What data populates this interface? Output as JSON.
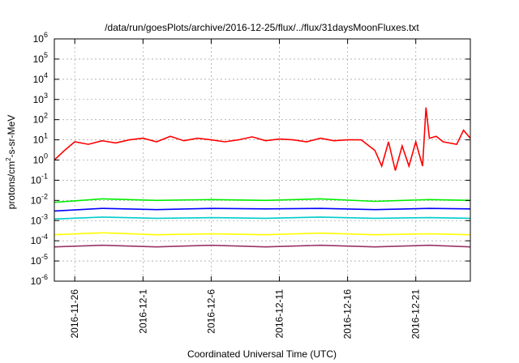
{
  "chart_data": {
    "type": "line",
    "title": "/data/run/goesPlots/archive/2016-12-25/flux/../flux/31daysMoonFluxes.txt",
    "xlabel": "Coordinated Universal Time (UTC)",
    "ylabel": "protons/cm2-s-sr-MeV",
    "ylabel_parts": {
      "before": "protons/cm",
      "sup": "2",
      "after": "-s-sr-MeV"
    },
    "yscale": "log",
    "ylim": [
      1e-06,
      1000000.0
    ],
    "xlim": [
      "2016-11-24T12:00",
      "2016-12-25T00:00"
    ],
    "grid": true,
    "y_ticks": [
      {
        "base": "10",
        "exp": "-6",
        "value": 1e-06
      },
      {
        "base": "10",
        "exp": "-5",
        "value": 1e-05
      },
      {
        "base": "10",
        "exp": "-4",
        "value": 0.0001
      },
      {
        "base": "10",
        "exp": "-3",
        "value": 0.001
      },
      {
        "base": "10",
        "exp": "-2",
        "value": 0.01
      },
      {
        "base": "10",
        "exp": "-1",
        "value": 0.1
      },
      {
        "base": "10",
        "exp": "0",
        "value": 1.0
      },
      {
        "base": "10",
        "exp": "1",
        "value": 10.0
      },
      {
        "base": "10",
        "exp": "2",
        "value": 100.0
      },
      {
        "base": "10",
        "exp": "3",
        "value": 1000.0
      },
      {
        "base": "10",
        "exp": "4",
        "value": 10000.0
      },
      {
        "base": "10",
        "exp": "5",
        "value": 100000.0
      },
      {
        "base": "10",
        "exp": "6",
        "value": 1000000.0
      }
    ],
    "x_ticks": [
      {
        "label": "2016-11-26",
        "date": "2016-11-26"
      },
      {
        "label": "2016-12-1",
        "date": "2016-12-01"
      },
      {
        "label": "2016-12-6",
        "date": "2016-12-06"
      },
      {
        "label": "2016-12-11",
        "date": "2016-12-11"
      },
      {
        "label": "2016-12-16",
        "date": "2016-12-16"
      },
      {
        "label": "2016-12-21",
        "date": "2016-12-21"
      }
    ],
    "series": [
      {
        "color": "#ff0000",
        "x": [
          "2016-11-24T12:00",
          "2016-11-25T06:00",
          "2016-11-26T00:00",
          "2016-11-27T00:00",
          "2016-11-28T00:00",
          "2016-11-29T00:00",
          "2016-11-30T00:00",
          "2016-12-01T00:00",
          "2016-12-02T00:00",
          "2016-12-03T00:00",
          "2016-12-04T00:00",
          "2016-12-05T00:00",
          "2016-12-06T00:00",
          "2016-12-07T00:00",
          "2016-12-08T00:00",
          "2016-12-09T00:00",
          "2016-12-10T00:00",
          "2016-12-11T00:00",
          "2016-12-12T00:00",
          "2016-12-13T00:00",
          "2016-12-14T00:00",
          "2016-12-15T00:00",
          "2016-12-16T00:00",
          "2016-12-17T00:00",
          "2016-12-18T00:00",
          "2016-12-18T12:00",
          "2016-12-19T00:00",
          "2016-12-19T12:00",
          "2016-12-20T00:00",
          "2016-12-20T12:00",
          "2016-12-21T00:00",
          "2016-12-21T12:00",
          "2016-12-21T18:00",
          "2016-12-22T00:00",
          "2016-12-22T12:00",
          "2016-12-23T00:00",
          "2016-12-24T00:00",
          "2016-12-24T12:00",
          "2016-12-25T00:00"
        ],
        "values": [
          1,
          3,
          8,
          6,
          9,
          7,
          10,
          12,
          8,
          15,
          9,
          12,
          10,
          8,
          10,
          14,
          9,
          11,
          10,
          8,
          12,
          9,
          10,
          10,
          3,
          0.5,
          8,
          0.3,
          5,
          0.5,
          8,
          0.5,
          400,
          12,
          15,
          8,
          6,
          30,
          12
        ]
      },
      {
        "color": "#00ee00",
        "x": [
          "2016-11-24T12:00",
          "2016-11-28T00:00",
          "2016-12-02T00:00",
          "2016-12-06T00:00",
          "2016-12-10T00:00",
          "2016-12-14T00:00",
          "2016-12-18T00:00",
          "2016-12-22T00:00",
          "2016-12-25T00:00"
        ],
        "values": [
          0.008,
          0.012,
          0.01,
          0.011,
          0.01,
          0.012,
          0.009,
          0.011,
          0.01
        ]
      },
      {
        "color": "#0000ff",
        "x": [
          "2016-11-24T12:00",
          "2016-11-28T00:00",
          "2016-12-02T00:00",
          "2016-12-06T00:00",
          "2016-12-10T00:00",
          "2016-12-14T00:00",
          "2016-12-18T00:00",
          "2016-12-22T00:00",
          "2016-12-25T00:00"
        ],
        "values": [
          0.003,
          0.004,
          0.0035,
          0.004,
          0.0038,
          0.004,
          0.0035,
          0.004,
          0.0038
        ]
      },
      {
        "color": "#00cccc",
        "x": [
          "2016-11-24T12:00",
          "2016-11-28T00:00",
          "2016-12-02T00:00",
          "2016-12-06T00:00",
          "2016-12-10T00:00",
          "2016-12-14T00:00",
          "2016-12-18T00:00",
          "2016-12-22T00:00",
          "2016-12-25T00:00"
        ],
        "values": [
          0.0012,
          0.0015,
          0.0013,
          0.0014,
          0.0013,
          0.0015,
          0.0013,
          0.0014,
          0.0013
        ]
      },
      {
        "color": "#ffff00",
        "x": [
          "2016-11-24T12:00",
          "2016-11-28T00:00",
          "2016-12-02T00:00",
          "2016-12-06T00:00",
          "2016-12-10T00:00",
          "2016-12-14T00:00",
          "2016-12-18T00:00",
          "2016-12-22T00:00",
          "2016-12-25T00:00"
        ],
        "values": [
          0.0002,
          0.00025,
          0.0002,
          0.00022,
          0.0002,
          0.00024,
          0.0002,
          0.00022,
          0.0002
        ]
      },
      {
        "color": "#993366",
        "x": [
          "2016-11-24T12:00",
          "2016-11-28T00:00",
          "2016-12-02T00:00",
          "2016-12-06T00:00",
          "2016-12-10T00:00",
          "2016-12-14T00:00",
          "2016-12-18T00:00",
          "2016-12-22T00:00",
          "2016-12-25T00:00"
        ],
        "values": [
          5e-05,
          6e-05,
          5e-05,
          6e-05,
          5e-05,
          6e-05,
          5e-05,
          6e-05,
          5e-05
        ]
      }
    ]
  }
}
